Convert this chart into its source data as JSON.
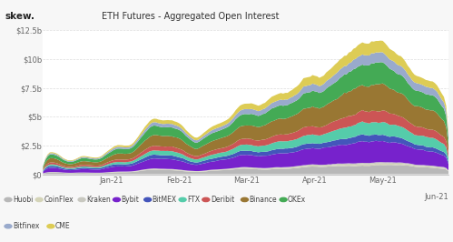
{
  "title": "ETH Futures - Aggregated Open Interest",
  "skew_label": "skew.",
  "bg_color": "#f7f7f7",
  "plot_bg_color": "#ffffff",
  "grid_color": "#dddddd",
  "x_labels": [
    "Jan-21",
    "Feb-21",
    "Mar-21",
    "Apr-21",
    "May-21",
    "Jun-21"
  ],
  "y_ticks": [
    0,
    2.5,
    5.0,
    7.5,
    10.0,
    12.5
  ],
  "y_labels": [
    "$0",
    "$2.5b",
    "$5b",
    "$7.5b",
    "$10b",
    "$12.5b"
  ],
  "legend": [
    {
      "label": "Huobi",
      "color": "#b8b8b8"
    },
    {
      "label": "CoinFlex",
      "color": "#d4d4b8"
    },
    {
      "label": "Kraken",
      "color": "#c8c8c0"
    },
    {
      "label": "Bybit",
      "color": "#7722cc"
    },
    {
      "label": "BitMEX",
      "color": "#4455bb"
    },
    {
      "label": "FTX",
      "color": "#55ccaa"
    },
    {
      "label": "Deribit",
      "color": "#cc5555"
    },
    {
      "label": "Binance",
      "color": "#997733"
    },
    {
      "label": "OKEx",
      "color": "#44aa55"
    },
    {
      "label": "Bitfinex",
      "color": "#99aacc"
    },
    {
      "label": "CME",
      "color": "#ddcc55"
    }
  ],
  "n_points": 180,
  "series_order": [
    "Huobi",
    "CoinFlex",
    "Kraken",
    "Bybit",
    "BitMEX",
    "FTX",
    "Deribit",
    "Binance",
    "OKEx",
    "Bitfinex",
    "CME"
  ],
  "row1": [
    "Huobi",
    "CoinFlex",
    "Kraken",
    "Bybit",
    "BitMEX",
    "FTX",
    "Deribit",
    "Binance",
    "OKEx"
  ],
  "row2": [
    "Bitfinex",
    "CME"
  ]
}
